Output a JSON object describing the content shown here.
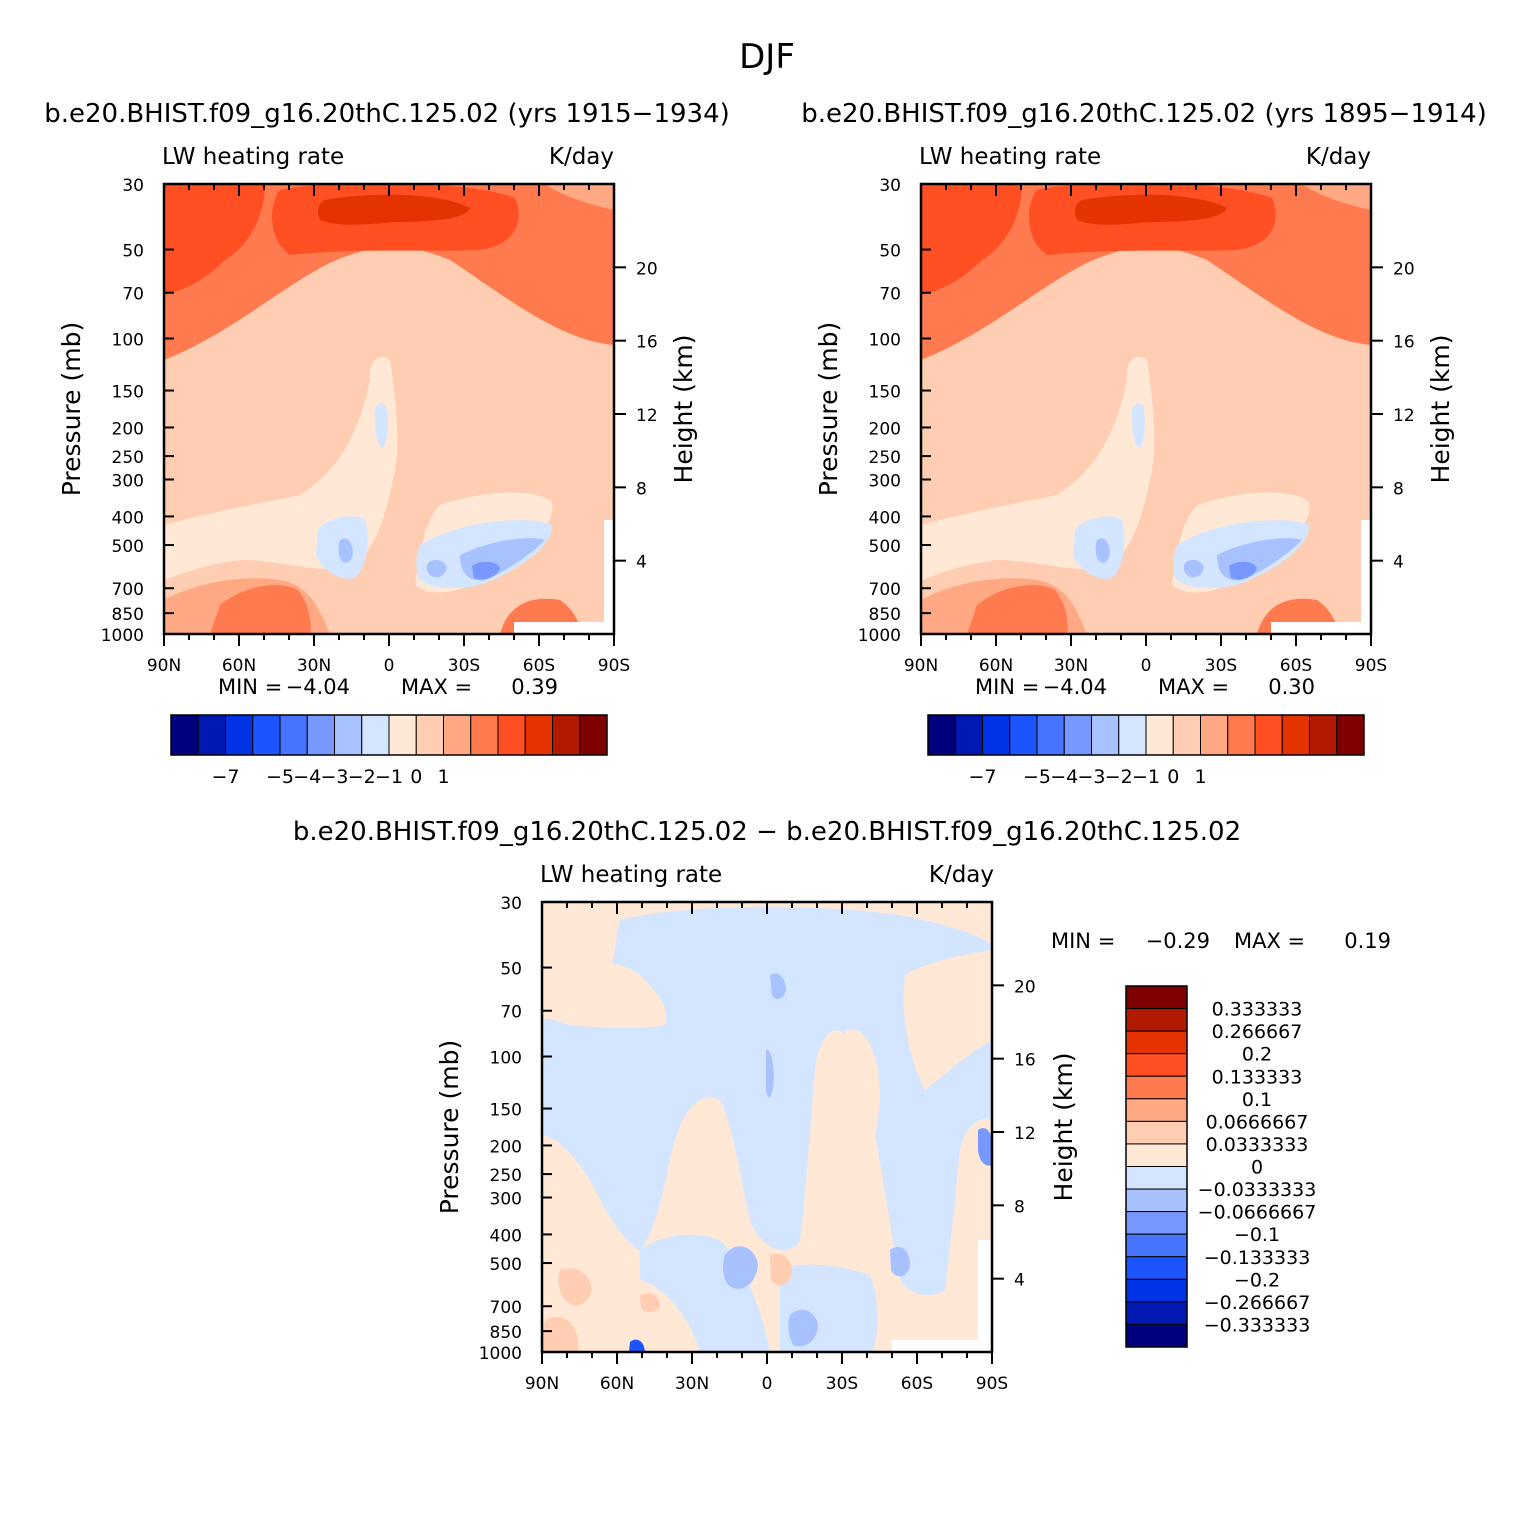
{
  "page_title": "DJF",
  "colors": {
    "blue_scale": [
      "#00007f",
      "#0019b2",
      "#0033e5",
      "#1c54ff",
      "#4775ff",
      "#7798ff",
      "#a8c1ff",
      "#d4e6ff"
    ],
    "red_scale": [
      "#ffe9d6",
      "#ffcdb2",
      "#ffa984",
      "#ff7a4f",
      "#ff4f23",
      "#e53300",
      "#b21a00",
      "#7f0000"
    ],
    "axis": "#000000"
  },
  "chart_data": [
    {
      "id": "panel-a",
      "type": "heatmap",
      "case_title": "b.e20.BHIST.f09_g16.20thC.125.02 (yrs 1915−1934)",
      "variable": "LW heating rate",
      "units": "K/day",
      "ylabel": "Pressure (mb)",
      "ylabel_right": "Height (km)",
      "x_ticks": [
        "90N",
        "60N",
        "30N",
        "0",
        "30S",
        "60S",
        "90S"
      ],
      "y_ticks": [
        30,
        50,
        70,
        100,
        150,
        200,
        250,
        300,
        400,
        500,
        700,
        850,
        1000
      ],
      "height_ticks": [
        20,
        16,
        12,
        8,
        4
      ],
      "min_label": "MIN =",
      "min_value": "−4.04",
      "max_label": "MAX =",
      "max_value": "0.39",
      "colorbar_labels": [
        "−7",
        "−5",
        "−4",
        "−3",
        "−2",
        "−1",
        "0",
        "1"
      ]
    },
    {
      "id": "panel-b",
      "type": "heatmap",
      "case_title": "b.e20.BHIST.f09_g16.20thC.125.02 (yrs 1895−1914)",
      "variable": "LW heating rate",
      "units": "K/day",
      "ylabel": "Pressure (mb)",
      "ylabel_right": "Height (km)",
      "x_ticks": [
        "90N",
        "60N",
        "30N",
        "0",
        "30S",
        "60S",
        "90S"
      ],
      "y_ticks": [
        30,
        50,
        70,
        100,
        150,
        200,
        250,
        300,
        400,
        500,
        700,
        850,
        1000
      ],
      "height_ticks": [
        20,
        16,
        12,
        8,
        4
      ],
      "min_label": "MIN =",
      "min_value": "−4.04",
      "max_label": "MAX =",
      "max_value": "0.30",
      "colorbar_labels": [
        "−7",
        "−5",
        "−4",
        "−3",
        "−2",
        "−1",
        "0",
        "1"
      ]
    },
    {
      "id": "panel-c",
      "type": "heatmap",
      "case_title": "b.e20.BHIST.f09_g16.20thC.125.02 − b.e20.BHIST.f09_g16.20thC.125.02",
      "variable": "LW heating rate",
      "units": "K/day",
      "ylabel": "Pressure (mb)",
      "ylabel_right": "Height (km)",
      "x_ticks": [
        "90N",
        "60N",
        "30N",
        "0",
        "30S",
        "60S",
        "90S"
      ],
      "y_ticks": [
        30,
        50,
        70,
        100,
        150,
        200,
        250,
        300,
        400,
        500,
        700,
        850,
        1000
      ],
      "height_ticks": [
        20,
        16,
        12,
        8,
        4
      ],
      "min_label": "MIN =",
      "min_value": "−0.29",
      "max_label": "MAX =",
      "max_value": "0.19",
      "colorbar_labels": [
        "0.333333",
        "0.266667",
        "0.2",
        "0.133333",
        "0.1",
        "0.0666667",
        "0.0333333",
        "0",
        "−0.0333333",
        "−0.0666667",
        "−0.1",
        "−0.133333",
        "−0.2",
        "−0.266667",
        "−0.333333"
      ]
    }
  ]
}
